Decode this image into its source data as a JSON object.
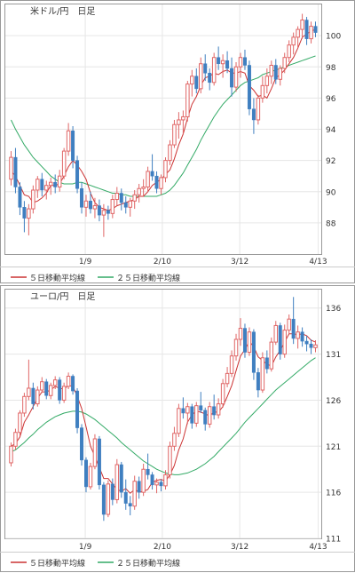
{
  "colors": {
    "panel_border": "#999999",
    "grid": "#e6e6e6",
    "up_candle": "#e06666",
    "down_candle": "#3f7fc0",
    "ma5": "#cc3333",
    "ma25": "#33aa66",
    "text": "#333333"
  },
  "chart_data": [
    {
      "type": "candlestick",
      "title": "米ドル/円　日足",
      "x_tick_labels": [
        "1/9",
        "2/10",
        "3/12",
        "4/13"
      ],
      "y_ticks": [
        88,
        90,
        92,
        94,
        96,
        98,
        100
      ],
      "ylim": [
        86,
        102
      ],
      "legend": [
        {
          "name": "５日移動平均線",
          "color": "#cc3333"
        },
        {
          "name": "２５日移動平均線",
          "color": "#33aa66"
        }
      ],
      "candles": [
        [
          90.8,
          92.6,
          90.4,
          92.2
        ],
        [
          92.2,
          92.8,
          89.9,
          90.3
        ],
        [
          90.3,
          90.6,
          88.5,
          89.0
        ],
        [
          89.0,
          89.4,
          87.4,
          88.3
        ],
        [
          88.3,
          89.2,
          87.2,
          88.9
        ],
        [
          88.9,
          90.4,
          88.6,
          90.1
        ],
        [
          90.1,
          91.0,
          89.6,
          90.8
        ],
        [
          90.8,
          91.2,
          89.7,
          90.1
        ],
        [
          90.1,
          90.7,
          89.5,
          90.4
        ],
        [
          90.4,
          90.9,
          89.8,
          90.6
        ],
        [
          90.6,
          91.1,
          89.9,
          90.3
        ],
        [
          90.3,
          91.4,
          90.0,
          91.0
        ],
        [
          91.0,
          92.8,
          90.8,
          92.6
        ],
        [
          92.6,
          94.4,
          92.3,
          93.9
        ],
        [
          93.9,
          94.2,
          91.5,
          92.0
        ],
        [
          92.0,
          92.3,
          89.9,
          90.2
        ],
        [
          90.2,
          90.6,
          88.6,
          89.0
        ],
        [
          89.0,
          89.8,
          88.4,
          89.4
        ],
        [
          89.4,
          90.0,
          88.6,
          88.9
        ],
        [
          88.9,
          89.6,
          88.3,
          89.1
        ],
        [
          89.1,
          89.5,
          88.1,
          88.5
        ],
        [
          88.5,
          89.2,
          87.1,
          88.8
        ],
        [
          88.8,
          89.1,
          88.2,
          88.6
        ],
        [
          88.6,
          89.8,
          88.3,
          89.5
        ],
        [
          89.5,
          90.3,
          89.1,
          89.9
        ],
        [
          89.9,
          90.2,
          88.8,
          89.3
        ],
        [
          89.3,
          89.7,
          88.6,
          89.0
        ],
        [
          89.0,
          89.6,
          88.4,
          89.4
        ],
        [
          89.4,
          90.1,
          88.9,
          89.8
        ],
        [
          89.8,
          90.5,
          89.3,
          90.2
        ],
        [
          90.2,
          90.8,
          89.7,
          90.3
        ],
        [
          90.3,
          91.6,
          90.0,
          91.3
        ],
        [
          91.3,
          92.4,
          90.7,
          91.0
        ],
        [
          91.0,
          91.3,
          89.9,
          90.2
        ],
        [
          90.2,
          91.1,
          89.8,
          90.9
        ],
        [
          90.9,
          92.2,
          90.6,
          92.0
        ],
        [
          92.0,
          93.3,
          91.7,
          93.0
        ],
        [
          93.0,
          94.6,
          92.8,
          94.3
        ],
        [
          94.3,
          95.1,
          93.4,
          94.6
        ],
        [
          94.6,
          95.2,
          93.7,
          94.8
        ],
        [
          94.8,
          97.1,
          94.5,
          96.9
        ],
        [
          96.9,
          97.8,
          96.1,
          97.4
        ],
        [
          97.4,
          97.9,
          96.3,
          96.6
        ],
        [
          96.6,
          98.6,
          96.3,
          98.2
        ],
        [
          98.2,
          98.8,
          97.1,
          97.6
        ],
        [
          97.6,
          97.9,
          96.5,
          97.0
        ],
        [
          97.0,
          98.9,
          96.8,
          98.6
        ],
        [
          98.6,
          99.3,
          97.8,
          98.2
        ],
        [
          98.2,
          98.8,
          97.3,
          98.4
        ],
        [
          98.4,
          99.0,
          97.6,
          97.9
        ],
        [
          97.9,
          98.6,
          96.1,
          96.7
        ],
        [
          96.7,
          98.3,
          96.4,
          98.0
        ],
        [
          98.0,
          98.9,
          97.3,
          98.6
        ],
        [
          98.6,
          99.1,
          97.8,
          98.1
        ],
        [
          98.1,
          98.4,
          94.9,
          95.3
        ],
        [
          95.3,
          96.0,
          93.7,
          94.6
        ],
        [
          94.6,
          96.2,
          94.3,
          96.0
        ],
        [
          96.0,
          97.4,
          95.7,
          96.8
        ],
        [
          96.8,
          97.9,
          96.3,
          97.4
        ],
        [
          97.4,
          98.4,
          96.9,
          98.1
        ],
        [
          98.1,
          98.5,
          96.9,
          97.2
        ],
        [
          97.2,
          98.1,
          96.8,
          97.9
        ],
        [
          97.9,
          98.9,
          97.6,
          98.6
        ],
        [
          98.6,
          99.7,
          98.3,
          99.4
        ],
        [
          99.4,
          100.2,
          98.8,
          99.9
        ],
        [
          99.9,
          100.6,
          99.2,
          100.4
        ],
        [
          100.4,
          101.4,
          99.8,
          101.0
        ],
        [
          101.0,
          101.2,
          99.4,
          99.8
        ],
        [
          99.8,
          100.9,
          99.5,
          100.6
        ],
        [
          100.6,
          100.9,
          99.9,
          100.2
        ]
      ],
      "ma5": [
        91.3,
        91.0,
        90.4,
        89.8,
        89.7,
        89.3,
        89.4,
        89.6,
        89.9,
        90.4,
        90.4,
        90.5,
        91.0,
        91.6,
        92.0,
        91.7,
        91.3,
        90.8,
        89.9,
        89.3,
        89.0,
        88.9,
        88.8,
        88.9,
        89.1,
        89.2,
        89.3,
        89.4,
        89.5,
        89.7,
        89.7,
        90.0,
        90.4,
        90.6,
        90.8,
        91.1,
        91.4,
        92.1,
        93.0,
        93.7,
        94.7,
        95.6,
        96.1,
        96.8,
        97.3,
        97.4,
        97.6,
        97.5,
        97.7,
        97.8,
        97.6,
        97.6,
        97.7,
        97.6,
        96.8,
        96.5,
        96.1,
        96.2,
        96.0,
        96.6,
        97.3,
        97.5,
        97.8,
        98.2,
        98.6,
        99.2,
        99.9,
        100.1,
        100.3,
        100.4
      ],
      "ma25": [
        94.6,
        94.0,
        93.5,
        93.0,
        92.6,
        92.2,
        91.9,
        91.6,
        91.3,
        91.0,
        90.8,
        90.6,
        90.5,
        90.5,
        90.5,
        90.6,
        90.6,
        90.5,
        90.4,
        90.3,
        90.2,
        90.1,
        90.0,
        89.9,
        89.9,
        89.8,
        89.8,
        89.7,
        89.7,
        89.7,
        89.7,
        89.7,
        89.7,
        89.7,
        89.8,
        89.9,
        90.1,
        90.4,
        90.8,
        91.2,
        91.7,
        92.2,
        92.7,
        93.3,
        93.8,
        94.3,
        94.8,
        95.2,
        95.6,
        95.9,
        96.2,
        96.5,
        96.8,
        97.0,
        97.1,
        97.2,
        97.3,
        97.5,
        97.6,
        97.7,
        97.8,
        97.9,
        98.0,
        98.1,
        98.2,
        98.3,
        98.4,
        98.5,
        98.6,
        98.7
      ]
    },
    {
      "type": "candlestick",
      "title": "ユーロ/円　日足",
      "x_tick_labels": [
        "1/9",
        "2/10",
        "3/12",
        "4/13"
      ],
      "y_ticks": [
        111,
        116,
        121,
        126,
        131,
        136
      ],
      "ylim": [
        111,
        138
      ],
      "legend": [
        {
          "name": "５日移動平均線",
          "color": "#cc3333"
        },
        {
          "name": "２５日移動平均線",
          "color": "#33aa66"
        }
      ],
      "candles": [
        [
          119.2,
          121.4,
          118.8,
          121.0
        ],
        [
          121.0,
          122.9,
          120.6,
          122.5
        ],
        [
          122.5,
          124.9,
          122.1,
          124.6
        ],
        [
          124.6,
          126.8,
          124.2,
          126.4
        ],
        [
          126.4,
          130.4,
          126.0,
          127.3
        ],
        [
          127.3,
          127.9,
          125.0,
          125.6
        ],
        [
          125.6,
          127.5,
          125.3,
          127.1
        ],
        [
          127.1,
          128.5,
          126.8,
          128.0
        ],
        [
          128.0,
          128.3,
          126.1,
          126.5
        ],
        [
          126.5,
          127.9,
          126.1,
          127.6
        ],
        [
          127.6,
          128.6,
          127.2,
          128.2
        ],
        [
          128.2,
          128.5,
          125.6,
          126.0
        ],
        [
          126.0,
          127.9,
          125.7,
          127.5
        ],
        [
          127.5,
          129.0,
          127.2,
          128.6
        ],
        [
          128.6,
          128.8,
          126.6,
          127.0
        ],
        [
          127.0,
          127.3,
          122.4,
          123.0
        ],
        [
          123.0,
          123.4,
          118.9,
          119.5
        ],
        [
          119.5,
          119.8,
          116.0,
          116.6
        ],
        [
          116.6,
          119.2,
          116.3,
          118.8
        ],
        [
          118.8,
          122.3,
          118.5,
          121.8
        ],
        [
          121.8,
          122.1,
          116.3,
          116.8
        ],
        [
          116.8,
          117.1,
          112.9,
          113.6
        ],
        [
          113.6,
          117.3,
          113.3,
          116.9
        ],
        [
          116.9,
          117.5,
          114.6,
          115.2
        ],
        [
          115.2,
          119.6,
          114.8,
          119.0
        ],
        [
          119.0,
          119.3,
          115.4,
          116.0
        ],
        [
          116.0,
          117.4,
          114.1,
          114.8
        ],
        [
          114.8,
          115.6,
          113.5,
          114.5
        ],
        [
          114.5,
          117.8,
          114.1,
          117.2
        ],
        [
          117.2,
          117.7,
          115.3,
          116.0
        ],
        [
          116.0,
          119.1,
          115.6,
          118.5
        ],
        [
          118.5,
          120.2,
          117.4,
          117.9
        ],
        [
          117.9,
          118.2,
          116.3,
          116.8
        ],
        [
          116.8,
          117.5,
          115.9,
          117.1
        ],
        [
          117.1,
          117.4,
          116.1,
          116.7
        ],
        [
          116.7,
          118.4,
          116.3,
          117.9
        ],
        [
          117.9,
          121.5,
          117.5,
          121.0
        ],
        [
          121.0,
          123.1,
          120.5,
          122.4
        ],
        [
          122.4,
          125.6,
          122.0,
          125.1
        ],
        [
          125.1,
          126.3,
          124.0,
          124.6
        ],
        [
          124.6,
          125.7,
          123.4,
          125.3
        ],
        [
          125.3,
          125.6,
          122.9,
          123.5
        ],
        [
          123.5,
          125.8,
          123.1,
          125.4
        ],
        [
          125.4,
          126.9,
          124.6,
          124.9
        ],
        [
          124.9,
          125.2,
          122.7,
          123.4
        ],
        [
          123.4,
          125.8,
          123.0,
          125.3
        ],
        [
          125.3,
          126.6,
          123.9,
          124.4
        ],
        [
          124.4,
          126.2,
          124.0,
          125.6
        ],
        [
          125.6,
          128.3,
          125.2,
          127.8
        ],
        [
          127.8,
          129.6,
          127.4,
          128.9
        ],
        [
          128.9,
          131.4,
          128.5,
          130.8
        ],
        [
          130.8,
          133.2,
          130.3,
          132.6
        ],
        [
          132.6,
          134.9,
          131.9,
          133.8
        ],
        [
          133.8,
          134.3,
          130.6,
          131.2
        ],
        [
          131.2,
          133.9,
          130.8,
          133.4
        ],
        [
          133.4,
          133.7,
          128.2,
          129.0
        ],
        [
          129.0,
          129.5,
          126.3,
          127.1
        ],
        [
          127.1,
          131.2,
          126.8,
          130.6
        ],
        [
          130.6,
          131.4,
          128.9,
          129.4
        ],
        [
          129.4,
          132.8,
          129.1,
          132.3
        ],
        [
          132.3,
          134.6,
          132.0,
          134.1
        ],
        [
          134.1,
          134.4,
          130.4,
          131.0
        ],
        [
          131.0,
          134.2,
          130.6,
          133.6
        ],
        [
          133.6,
          135.3,
          133.2,
          134.8
        ],
        [
          134.8,
          137.2,
          132.1,
          132.7
        ],
        [
          132.7,
          134.1,
          131.6,
          133.4
        ],
        [
          133.4,
          133.9,
          131.8,
          132.4
        ],
        [
          132.4,
          133.0,
          131.3,
          132.1
        ],
        [
          132.1,
          132.6,
          131.0,
          131.7
        ],
        [
          131.7,
          132.5,
          131.2,
          132.0
        ]
      ],
      "ma5": [
        121.0,
        121.3,
        122.0,
        123.6,
        124.4,
        125.3,
        126.2,
        126.9,
        126.9,
        127.1,
        127.5,
        127.3,
        127.2,
        127.6,
        127.5,
        126.4,
        125.1,
        123.1,
        121.0,
        119.9,
        118.7,
        117.5,
        117.5,
        116.9,
        116.3,
        116.1,
        116.4,
        115.9,
        116.3,
        116.0,
        116.1,
        116.3,
        117.1,
        117.3,
        117.4,
        117.2,
        117.9,
        118.9,
        120.6,
        121.8,
        123.6,
        124.4,
        124.8,
        124.7,
        124.5,
        124.3,
        124.7,
        124.7,
        125.3,
        126.4,
        127.6,
        129.2,
        130.8,
        131.5,
        132.4,
        131.8,
        130.7,
        130.3,
        129.9,
        129.7,
        130.7,
        131.4,
        132.3,
        133.2,
        133.2,
        133.1,
        133.2,
        133.0,
        132.5,
        132.3
      ],
      "ma25": [
        120.4,
        120.6,
        121.0,
        121.4,
        121.9,
        122.3,
        122.8,
        123.2,
        123.6,
        123.9,
        124.2,
        124.4,
        124.6,
        124.7,
        124.8,
        124.8,
        124.7,
        124.5,
        124.2,
        123.9,
        123.5,
        123.1,
        122.7,
        122.3,
        121.9,
        121.4,
        121.0,
        120.6,
        120.2,
        119.8,
        119.4,
        119.1,
        118.8,
        118.5,
        118.3,
        118.1,
        118.0,
        117.9,
        117.9,
        118.0,
        118.1,
        118.3,
        118.5,
        118.8,
        119.1,
        119.5,
        119.9,
        120.4,
        120.9,
        121.4,
        121.9,
        122.4,
        123.0,
        123.6,
        124.1,
        124.6,
        125.1,
        125.6,
        126.1,
        126.6,
        127.1,
        127.5,
        127.9,
        128.3,
        128.7,
        129.1,
        129.5,
        129.9,
        130.3,
        130.6
      ]
    }
  ]
}
